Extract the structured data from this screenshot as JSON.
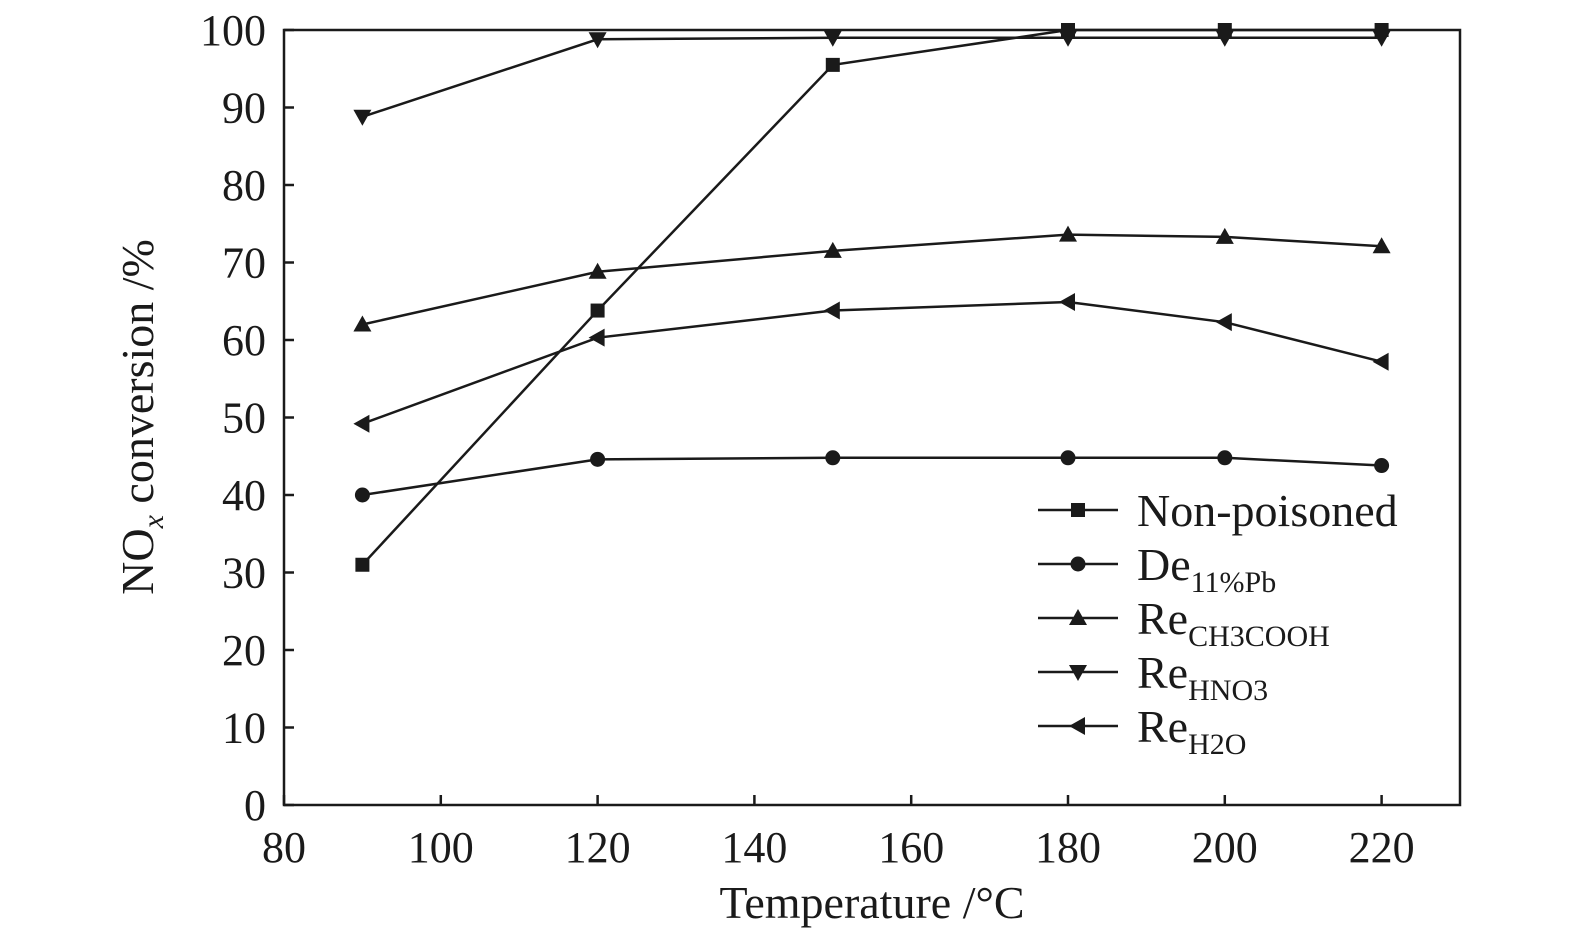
{
  "chart_data": {
    "type": "line",
    "xlabel": "Temperature /°C",
    "ylabel_main": "NO",
    "ylabel_sub": "x",
    "ylabel_rest": " conversion /%",
    "xlim": [
      80,
      230
    ],
    "ylim": [
      0,
      100
    ],
    "xticks": [
      80,
      100,
      120,
      140,
      160,
      180,
      200,
      220
    ],
    "yticks": [
      0,
      10,
      20,
      30,
      40,
      50,
      60,
      70,
      80,
      90,
      100
    ],
    "grid": false,
    "legend_position": "bottom-right",
    "x": [
      90,
      120,
      150,
      180,
      200,
      220
    ],
    "series": [
      {
        "name": "Non-poisoned",
        "name_main": "Non-poisoned",
        "name_sub": "",
        "marker": "square",
        "values": [
          31,
          63.8,
          95.5,
          100,
          100,
          100
        ]
      },
      {
        "name": "De11%Pb",
        "name_main": "De",
        "name_sub": "11%Pb",
        "marker": "circle",
        "values": [
          40,
          44.6,
          44.8,
          44.8,
          44.8,
          43.8
        ]
      },
      {
        "name": "ReCH3COOH",
        "name_main": "Re",
        "name_sub": "CH3COOH",
        "marker": "triangle-up",
        "values": [
          62,
          68.8,
          71.5,
          73.6,
          73.3,
          72.1
        ]
      },
      {
        "name": "ReHNO3",
        "name_main": "Re",
        "name_sub": "HNO3",
        "marker": "triangle-down",
        "values": [
          88.8,
          98.8,
          99,
          99,
          99,
          99
        ]
      },
      {
        "name": "ReH2O",
        "name_main": "Re",
        "name_sub": "H2O",
        "marker": "triangle-left",
        "values": [
          49.2,
          60.3,
          63.8,
          64.9,
          62.3,
          57.2
        ]
      }
    ]
  }
}
